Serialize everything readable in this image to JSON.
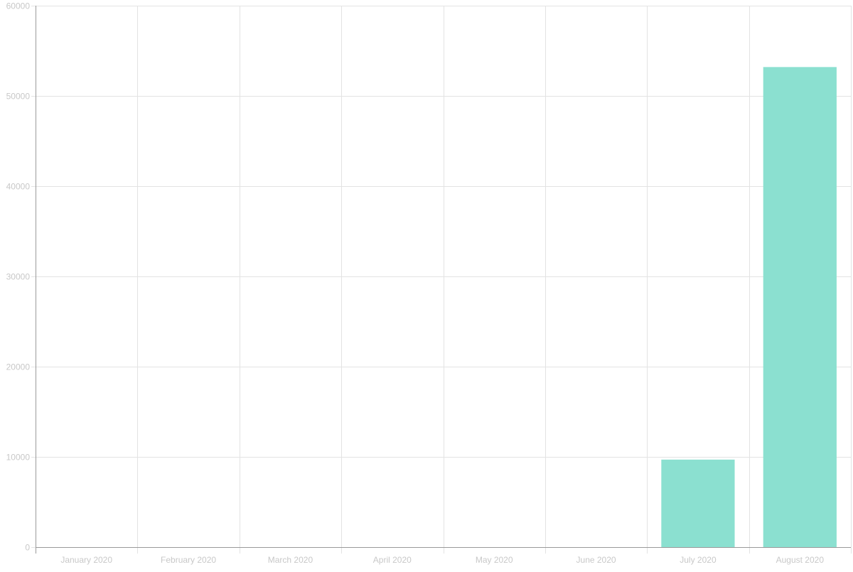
{
  "chart_data": {
    "type": "bar",
    "categories": [
      "January 2020",
      "February 2020",
      "March 2020",
      "April 2020",
      "May 2020",
      "June 2020",
      "July 2020",
      "August 2020"
    ],
    "values": [
      0,
      0,
      0,
      0,
      0,
      0,
      9700,
      53200
    ],
    "ylim": [
      0,
      60000
    ],
    "yticks": [
      0,
      10000,
      20000,
      30000,
      40000,
      50000,
      60000
    ],
    "grid": true,
    "colors": {
      "bar": "#8be0d0",
      "grid": "#e3e3e3",
      "axis": "#9a9a9a",
      "tick_text": "#c8c8c8"
    }
  }
}
